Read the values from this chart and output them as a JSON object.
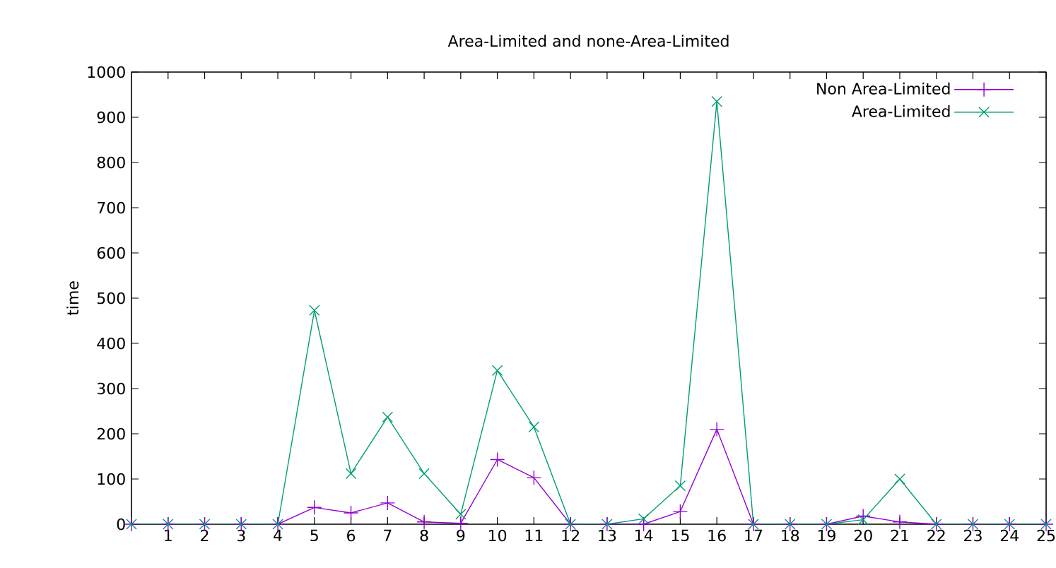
{
  "chart_data": {
    "type": "line",
    "title": "Area-Limited and none-Area-Limited",
    "ylabel": "time",
    "x": [
      0,
      1,
      2,
      3,
      4,
      5,
      6,
      7,
      8,
      9,
      10,
      11,
      12,
      13,
      14,
      15,
      16,
      17,
      18,
      19,
      20,
      21,
      22,
      23,
      24,
      25
    ],
    "xlim": [
      0,
      25
    ],
    "xticks": [
      1,
      2,
      3,
      4,
      5,
      6,
      7,
      8,
      9,
      10,
      11,
      12,
      13,
      14,
      15,
      16,
      17,
      18,
      19,
      20,
      21,
      22,
      23,
      24,
      25
    ],
    "ylim": [
      0,
      1000
    ],
    "yticks": [
      0,
      100,
      200,
      300,
      400,
      500,
      600,
      700,
      800,
      900,
      1000
    ],
    "grid": false,
    "legend": "top right",
    "line_style": "solid",
    "series": [
      {
        "name": "Non Area-Limited",
        "color": "#9400d3",
        "marker": "plus",
        "values": [
          0,
          0,
          0,
          0,
          0,
          37,
          25,
          47,
          5,
          2,
          143,
          103,
          0,
          0,
          0,
          28,
          210,
          0,
          0,
          0,
          18,
          5,
          0,
          0,
          0,
          0
        ]
      },
      {
        "name": "Area-Limited",
        "color": "#009e73",
        "marker": "cross",
        "values": [
          0,
          0,
          0,
          0,
          0,
          473,
          112,
          237,
          112,
          22,
          340,
          215,
          0,
          0,
          12,
          85,
          935,
          0,
          0,
          0,
          10,
          100,
          0,
          0,
          0,
          0
        ]
      }
    ]
  }
}
